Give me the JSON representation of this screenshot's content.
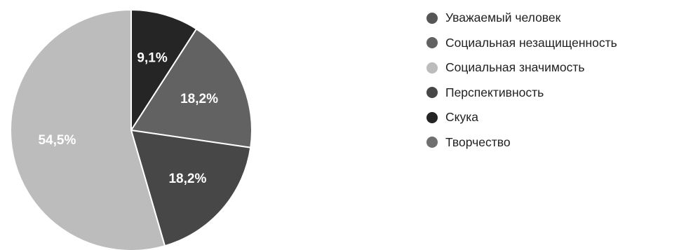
{
  "chart_data": {
    "type": "pie",
    "title": "",
    "start_angle_deg": 0,
    "direction": "clockwise",
    "slices": [
      {
        "name": "Уважаемый человек",
        "value": 0,
        "label": "",
        "color": "#565656"
      },
      {
        "name": "Социальная незащищенность",
        "value": 18.2,
        "label": "18,2%",
        "color": "#626262"
      },
      {
        "name": "Социальная значимость",
        "value": 54.5,
        "label": "54,5%",
        "color": "#bcbcbc"
      },
      {
        "name": "Перспективность",
        "value": 18.2,
        "label": "18,2%",
        "color": "#474747"
      },
      {
        "name": "Скука",
        "value": 9.1,
        "label": "9,1%",
        "color": "#252525"
      },
      {
        "name": "Творчество",
        "value": 0,
        "label": "",
        "color": "#6f6f6f"
      }
    ],
    "draw_order": [
      4,
      1,
      3,
      2
    ],
    "legend_position": "right"
  }
}
